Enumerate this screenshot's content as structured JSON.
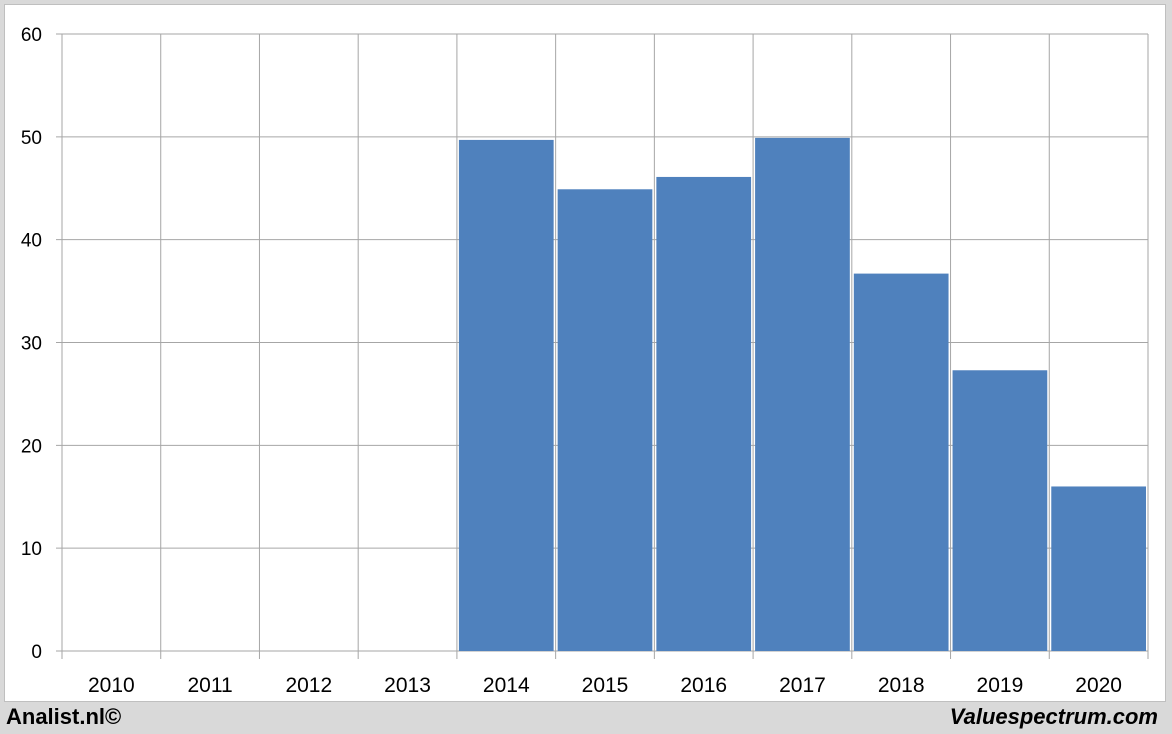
{
  "chart_data": {
    "type": "bar",
    "categories": [
      "2010",
      "2011",
      "2012",
      "2013",
      "2014",
      "2015",
      "2016",
      "2017",
      "2018",
      "2019",
      "2020"
    ],
    "values": [
      null,
      null,
      null,
      null,
      49.7,
      44.9,
      46.1,
      49.9,
      36.7,
      27.3,
      16.0
    ],
    "ylim": [
      0,
      60
    ],
    "yticks": [
      0,
      10,
      20,
      30,
      40,
      50,
      60
    ],
    "grid": true,
    "bar_color": "#4f81bd"
  },
  "footer": {
    "left": "Analist.nl©",
    "right": "Valuespectrum.com"
  }
}
